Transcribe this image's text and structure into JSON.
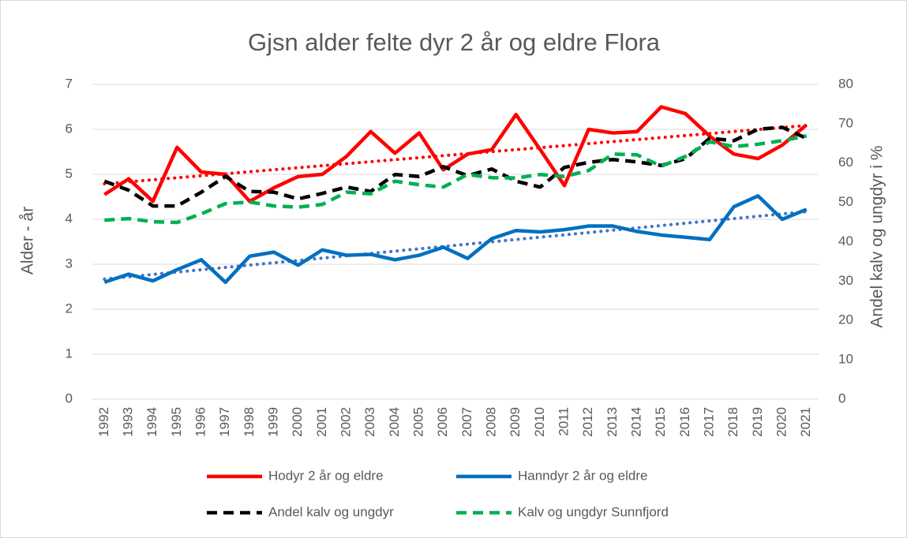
{
  "chart_data": {
    "type": "line",
    "title": "Gjsn alder felte dyr 2 år og eldre Flora",
    "ylabel": "Alder - år",
    "y2label": "Andel kalv og ungdyr i %",
    "categories": [
      "1992",
      "1993",
      "1994",
      "1995",
      "1996",
      "1997",
      "1998",
      "1999",
      "2000",
      "2001",
      "2002",
      "2003",
      "2004",
      "2005",
      "2006",
      "2007",
      "2008",
      "2009",
      "2010",
      "2011",
      "2012",
      "2013",
      "2014",
      "2015",
      "2016",
      "2017",
      "2018",
      "2019",
      "2020",
      "2021"
    ],
    "ylim": [
      0,
      7
    ],
    "yticks": [
      0,
      1,
      2,
      3,
      4,
      5,
      6,
      7
    ],
    "y2lim": [
      0,
      80
    ],
    "y2ticks": [
      0,
      10,
      20,
      30,
      40,
      50,
      60,
      70,
      80
    ],
    "grid": true,
    "legend": "bottom",
    "series": [
      {
        "name": "Hodyr 2 år og eldre",
        "color": "#ff0000",
        "dash": false,
        "trendline_color": "#ff0000",
        "values": [
          4.55,
          4.9,
          4.4,
          5.6,
          5.05,
          5.0,
          4.4,
          4.7,
          4.95,
          5.0,
          5.4,
          5.95,
          5.47,
          5.92,
          5.1,
          5.45,
          5.55,
          6.33,
          5.55,
          4.75,
          6.0,
          5.92,
          5.95,
          6.5,
          6.35,
          5.85,
          5.45,
          5.35,
          5.65,
          6.1
        ]
      },
      {
        "name": "Hanndyr 2 år og eldre",
        "color": "#0070c0",
        "dash": false,
        "trendline_color": "#4472c4",
        "values": [
          2.6,
          2.78,
          2.63,
          2.88,
          3.1,
          2.6,
          3.18,
          3.27,
          2.98,
          3.32,
          3.2,
          3.22,
          3.1,
          3.2,
          3.38,
          3.13,
          3.57,
          3.75,
          3.72,
          3.77,
          3.85,
          3.85,
          3.73,
          3.65,
          3.6,
          3.55,
          4.28,
          4.52,
          4.0,
          4.22
        ]
      },
      {
        "name": "Andel kalv og ungdyr",
        "color": "#000000",
        "dash": true,
        "axis": "y2",
        "values": [
          55.4,
          53.1,
          49.1,
          49.1,
          52.6,
          56.6,
          52.8,
          52.6,
          50.9,
          52.3,
          53.9,
          52.8,
          57.1,
          56.6,
          59.1,
          56.8,
          58.5,
          55.4,
          53.9,
          58.9,
          60.2,
          60.9,
          60.3,
          59.4,
          61.1,
          66.3,
          65.7,
          68.6,
          69.1,
          66.3
        ]
      },
      {
        "name": "Kalv og ungdyr Sunnfjord",
        "color": "#00b050",
        "dash": true,
        "axis": "y2",
        "values": [
          45.5,
          45.9,
          45.1,
          44.9,
          47.1,
          49.7,
          50.1,
          49.1,
          48.8,
          49.5,
          52.6,
          52.2,
          55.4,
          54.5,
          53.9,
          57.1,
          56.3,
          56.2,
          57.1,
          56.6,
          58.1,
          62.3,
          62.1,
          59.2,
          61.7,
          65.4,
          64.2,
          64.8,
          65.7,
          66.9
        ]
      }
    ]
  }
}
